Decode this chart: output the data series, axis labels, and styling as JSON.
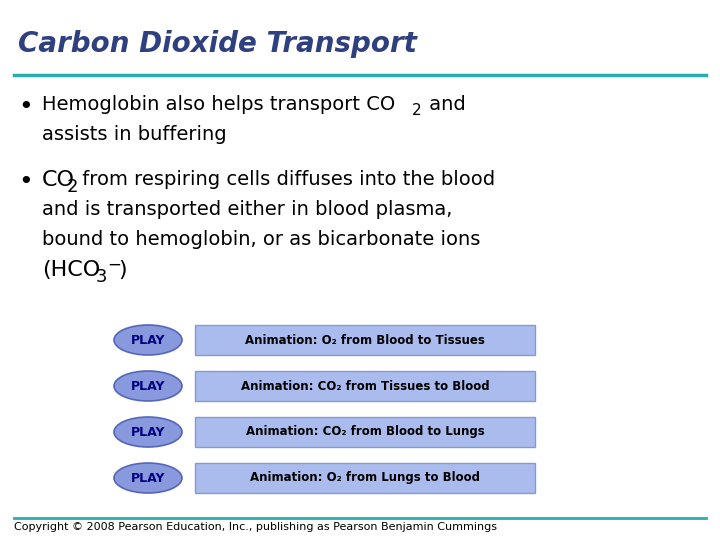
{
  "title": "Carbon Dioxide Transport",
  "title_color": "#2F4080",
  "title_fontsize": 20,
  "bg_color": "#FFFFFF",
  "divider_color": "#2AACAC",
  "play_buttons": [
    "Animation: O₂ from Blood to Tissues",
    "Animation: CO₂ from Tissues to Blood",
    "Animation: CO₂ from Blood to Lungs",
    "Animation: O₂ from Lungs to Blood"
  ],
  "play_ellipse_color": "#8899DD",
  "play_ellipse_edge": "#5566BB",
  "btn_rect_color": "#AABBEE",
  "btn_rect_edge": "#8899CC",
  "footer": "Copyright © 2008 Pearson Education, Inc., publishing as Pearson Benjamin Cummings",
  "footer_fontsize": 8,
  "text_color": "#000000",
  "body_fontsize": 14
}
